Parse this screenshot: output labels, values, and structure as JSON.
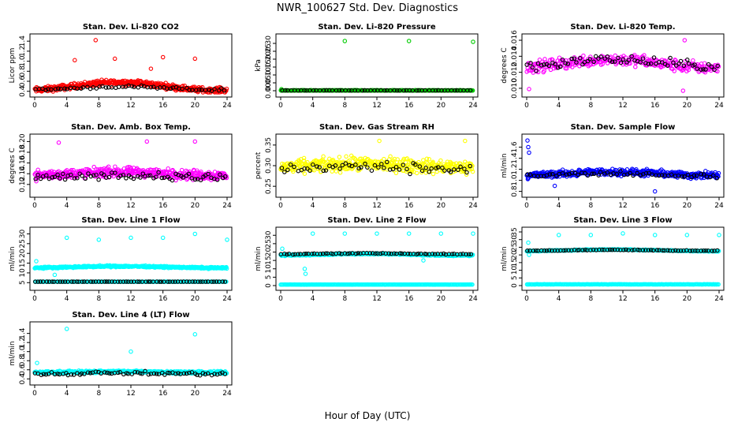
{
  "title": "NWR_100627  Std. Dev. Diagnostics",
  "xlabel": "Hour of Day (UTC)",
  "chart_data": [
    {
      "type": "scatter",
      "title": "Stan. Dev. Li-820 CO2",
      "ylabel": "Licor ppm",
      "xlim": [
        0,
        24
      ],
      "ylim": [
        0.38,
        1.45
      ],
      "xticks": [
        "0",
        "4",
        "8",
        "12",
        "16",
        "20",
        "24"
      ],
      "yticks": [
        0.4,
        0.6,
        0.8,
        1.0,
        1.2,
        1.4
      ],
      "ytick_labels": [
        "0.4",
        "0.6",
        "0.8",
        "1.0",
        "1.2",
        "1.4"
      ],
      "series": [
        {
          "color": "#ff0000",
          "n": 420,
          "base": 0.5,
          "spread": 0.08,
          "wave": 0.08,
          "outliers": [
            [
              7.6,
              1.42
            ],
            [
              10,
              1.05
            ],
            [
              14.5,
              0.85
            ],
            [
              16,
              1.08
            ],
            [
              20,
              1.05
            ],
            [
              5,
              1.02
            ]
          ]
        },
        {
          "color": "#000000",
          "n": 60,
          "base": 0.46,
          "spread": 0.04,
          "wave": 0.03,
          "outliers": []
        }
      ]
    },
    {
      "type": "scatter",
      "title": "Stan. Dev. Li-820 Pressure",
      "ylabel": "kPa",
      "xlim": [
        0,
        24
      ],
      "ylim": [
        -0.01,
        0.33
      ],
      "xticks": [
        "0",
        "4",
        "8",
        "12",
        "16",
        "20",
        "24"
      ],
      "yticks": [
        0.0,
        0.05,
        0.1,
        0.15,
        0.2,
        0.25,
        0.3
      ],
      "ytick_labels": [
        "0.00",
        "0.05",
        "0.10",
        "0.15",
        "0.20",
        "0.25",
        "0.30"
      ],
      "series": [
        {
          "color": "#00cc00",
          "n": 420,
          "base": 0.002,
          "spread": 0.002,
          "wave": 0.0,
          "outliers": [
            [
              0.1,
              0.01
            ],
            [
              8,
              0.315
            ],
            [
              16,
              0.315
            ],
            [
              24,
              0.31
            ]
          ]
        },
        {
          "color": "#000000",
          "n": 60,
          "base": 0.002,
          "spread": 0.001,
          "wave": 0.0,
          "outliers": []
        }
      ]
    },
    {
      "type": "scatter",
      "title": "Stan. Dev. Li-820 Temp.",
      "ylabel": "degrees C",
      "xlim": [
        0,
        24
      ],
      "ylim": [
        0.0095,
        0.0162
      ],
      "xticks": [
        "0",
        "4",
        "8",
        "12",
        "16",
        "20",
        "24"
      ],
      "yticks": [
        0.01,
        0.012,
        0.014,
        0.016
      ],
      "ytick_labels": [
        "0.010",
        "0.012",
        "0.014",
        "0.016"
      ],
      "series": [
        {
          "color": "#ff00ff",
          "n": 300,
          "base": 0.0131,
          "spread": 0.0011,
          "wave": 0.0005,
          "outliers": [
            [
              0.3,
              0.0099
            ],
            [
              19.5,
              0.0097
            ],
            [
              19.7,
              0.016
            ]
          ]
        },
        {
          "color": "#000000",
          "n": 70,
          "base": 0.0132,
          "spread": 0.0009,
          "wave": 0.0004,
          "outliers": []
        }
      ]
    },
    {
      "type": "scatter",
      "title": "Stan. Dev. Amb. Box Temp.",
      "ylabel": "degrees C",
      "xlim": [
        0,
        24
      ],
      "ylim": [
        0.105,
        0.205
      ],
      "xticks": [
        "0",
        "4",
        "8",
        "12",
        "16",
        "20",
        "24"
      ],
      "yticks": [
        0.12,
        0.14,
        0.16,
        0.18,
        0.2
      ],
      "ytick_labels": [
        "0.12",
        "0.14",
        "0.16",
        "0.18",
        "0.20"
      ],
      "series": [
        {
          "color": "#ff00ff",
          "n": 420,
          "base": 0.14,
          "spread": 0.013,
          "wave": 0.003,
          "outliers": [
            [
              3,
              0.198
            ],
            [
              14,
              0.2
            ],
            [
              20,
              0.2
            ]
          ]
        },
        {
          "color": "#000000",
          "n": 70,
          "base": 0.135,
          "spread": 0.01,
          "wave": 0.002,
          "outliers": []
        }
      ]
    },
    {
      "type": "scatter",
      "title": "Stan. Dev. Gas Stream RH",
      "ylabel": "percent",
      "xlim": [
        0,
        24
      ],
      "ylim": [
        0.235,
        0.365
      ],
      "xticks": [
        "0",
        "4",
        "8",
        "12",
        "16",
        "20",
        "24"
      ],
      "yticks": [
        0.25,
        0.3,
        0.35
      ],
      "ytick_labels": [
        "0.25",
        "0.30",
        "0.35"
      ],
      "series": [
        {
          "color": "#ffff00",
          "n": 420,
          "base": 0.3,
          "spread": 0.025,
          "wave": 0.004,
          "outliers": [
            [
              12.3,
              0.36
            ],
            [
              23,
              0.36
            ]
          ]
        },
        {
          "color": "#000000",
          "n": 60,
          "base": 0.295,
          "spread": 0.018,
          "wave": 0.003,
          "outliers": []
        }
      ]
    },
    {
      "type": "scatter",
      "title": "Stan. Dev. Sample Flow",
      "ylabel": "ml/min",
      "xlim": [
        0,
        24
      ],
      "ylim": [
        0.78,
        1.75
      ],
      "xticks": [
        "0",
        "4",
        "8",
        "12",
        "16",
        "20",
        "24"
      ],
      "yticks": [
        0.8,
        1.0,
        1.2,
        1.4,
        1.6
      ],
      "ytick_labels": [
        "0.8",
        "1.0",
        "1.2",
        "1.4",
        "1.6"
      ],
      "series": [
        {
          "color": "#0000ff",
          "n": 420,
          "base": 1.12,
          "spread": 0.09,
          "wave": 0.03,
          "outliers": [
            [
              0.1,
              1.72
            ],
            [
              0.2,
              1.6
            ],
            [
              0.3,
              1.5
            ],
            [
              16,
              0.8
            ],
            [
              3.5,
              0.9
            ]
          ]
        },
        {
          "color": "#000000",
          "n": 60,
          "base": 1.1,
          "spread": 0.06,
          "wave": 0.02,
          "outliers": []
        }
      ]
    },
    {
      "type": "scatter",
      "title": "Stan. Dev. Line 1 Flow",
      "ylabel": "ml/min",
      "xlim": [
        0,
        24
      ],
      "ylim": [
        3.5,
        31
      ],
      "xticks": [
        "0",
        "4",
        "8",
        "12",
        "16",
        "20",
        "24"
      ],
      "yticks": [
        5,
        10,
        15,
        20,
        25,
        30
      ],
      "ytick_labels": [
        "5",
        "10",
        "15",
        "20",
        "25",
        "30"
      ],
      "series": [
        {
          "color": "#00ffff",
          "n": 420,
          "base": 13,
          "spread": 0.6,
          "wave": 0.4,
          "outliers": [
            [
              4,
              28
            ],
            [
              8,
              27
            ],
            [
              12,
              28
            ],
            [
              16,
              28
            ],
            [
              20,
              30
            ],
            [
              24,
              27
            ],
            [
              0.2,
              16
            ],
            [
              2.5,
              9
            ]
          ]
        },
        {
          "color": "#00ffff",
          "n": 200,
          "base": 5.5,
          "spread": 0.05,
          "wave": 0.0,
          "outliers": []
        },
        {
          "color": "#000000",
          "n": 70,
          "base": 5.5,
          "spread": 0.05,
          "wave": 0.0,
          "outliers": []
        }
      ]
    },
    {
      "type": "scatter",
      "title": "Stan. Dev. Line 2 Flow",
      "ylabel": "ml/min",
      "xlim": [
        0,
        24
      ],
      "ylim": [
        0,
        32
      ],
      "xticks": [
        "0",
        "4",
        "8",
        "12",
        "16",
        "20",
        "24"
      ],
      "yticks": [
        0,
        5,
        10,
        15,
        20,
        25,
        30
      ],
      "ytick_labels": [
        "0",
        "5",
        "10",
        "15",
        "20",
        "25",
        "30"
      ],
      "series": [
        {
          "color": "#00ffff",
          "n": 420,
          "base": 18.5,
          "spread": 0.6,
          "wave": 0.5,
          "outliers": [
            [
              4,
              31
            ],
            [
              8,
              31
            ],
            [
              12,
              31
            ],
            [
              16,
              31
            ],
            [
              20,
              31
            ],
            [
              24,
              31
            ],
            [
              0.2,
              22
            ],
            [
              3,
              10
            ],
            [
              3.1,
              7
            ],
            [
              17.8,
              15
            ]
          ]
        },
        {
          "color": "#00ffff",
          "n": 200,
          "base": 0.6,
          "spread": 0.1,
          "wave": 0.0,
          "outliers": []
        },
        {
          "color": "#000000",
          "n": 70,
          "base": 19,
          "spread": 0.4,
          "wave": 0.3,
          "outliers": []
        }
      ]
    },
    {
      "type": "scatter",
      "title": "Stan. Dev. Line 3 Flow",
      "ylabel": "ml/min",
      "xlim": [
        0,
        24
      ],
      "ylim": [
        0,
        35
      ],
      "xticks": [
        "0",
        "4",
        "8",
        "12",
        "16",
        "20",
        "24"
      ],
      "yticks": [
        0,
        5,
        10,
        15,
        20,
        25,
        30,
        35
      ],
      "ytick_labels": [
        "0",
        "5",
        "10",
        "15",
        "20",
        "25",
        "30",
        "35"
      ],
      "series": [
        {
          "color": "#00ffff",
          "n": 420,
          "base": 23,
          "spread": 0.4,
          "wave": 0.5,
          "outliers": [
            [
              0.2,
              28
            ],
            [
              0.3,
              20
            ],
            [
              4,
              33
            ],
            [
              8,
              33
            ],
            [
              12,
              34
            ],
            [
              16,
              33
            ],
            [
              20,
              33
            ],
            [
              24,
              33
            ]
          ]
        },
        {
          "color": "#00ffff",
          "n": 200,
          "base": 0.8,
          "spread": 0.1,
          "wave": 0.0,
          "outliers": []
        },
        {
          "color": "#000000",
          "n": 70,
          "base": 23,
          "spread": 0.3,
          "wave": 0.3,
          "outliers": []
        }
      ]
    },
    {
      "type": "scatter",
      "title": "Stan. Dev. Line 4 (LT) Flow",
      "ylabel": "ml/min",
      "xlim": [
        0,
        24
      ],
      "ylim": [
        0.37,
        1.55
      ],
      "xticks": [
        "0",
        "4",
        "8",
        "12",
        "16",
        "20",
        "24"
      ],
      "yticks": [
        0.4,
        0.6,
        0.8,
        1.0,
        1.2,
        1.4
      ],
      "ytick_labels": [
        "0.4",
        "0.6",
        "0.8",
        "1.0",
        "1.2",
        "1.4"
      ],
      "series": [
        {
          "color": "#00ffff",
          "n": 420,
          "base": 0.55,
          "spread": 0.04,
          "wave": 0.01,
          "outliers": [
            [
              4,
              1.5
            ],
            [
              12,
              1.0
            ],
            [
              20,
              1.38
            ],
            [
              0.3,
              0.75
            ]
          ]
        },
        {
          "color": "#000000",
          "n": 70,
          "base": 0.52,
          "spread": 0.05,
          "wave": 0.01,
          "outliers": []
        }
      ]
    }
  ]
}
